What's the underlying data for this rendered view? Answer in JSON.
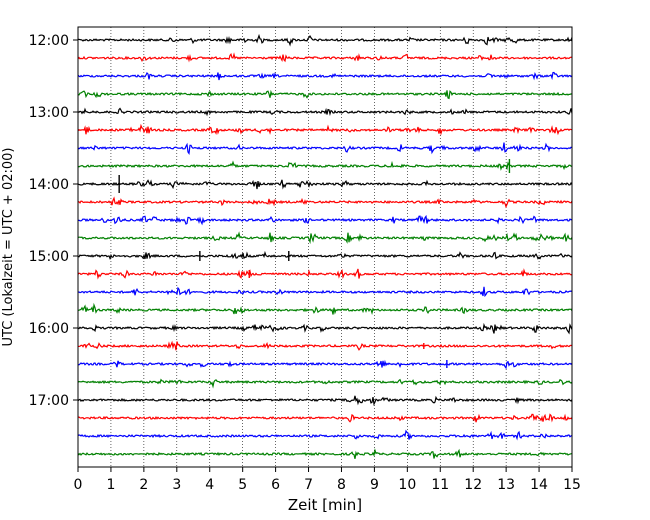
{
  "chart_data": {
    "type": "line",
    "title": "",
    "xlabel": "Zeit  [min]",
    "ylabel": "UTC (Lokalzeit = UTC + 02:00)",
    "xlim": [
      0,
      15
    ],
    "x_ticks": [
      "0",
      "1",
      "2",
      "3",
      "4",
      "5",
      "6",
      "7",
      "8",
      "9",
      "10",
      "11",
      "12",
      "13",
      "14",
      "15"
    ],
    "y_tick_labels": [
      "12:00",
      "13:00",
      "14:00",
      "15:00",
      "16:00",
      "17:00"
    ],
    "trace_interval_minutes": 15,
    "first_trace": "12:00",
    "trace_count": 24,
    "trace_colors": [
      "#000000",
      "#ff0000",
      "#0000ff",
      "#008000"
    ],
    "x_grid": "dotted",
    "legend": "none"
  }
}
